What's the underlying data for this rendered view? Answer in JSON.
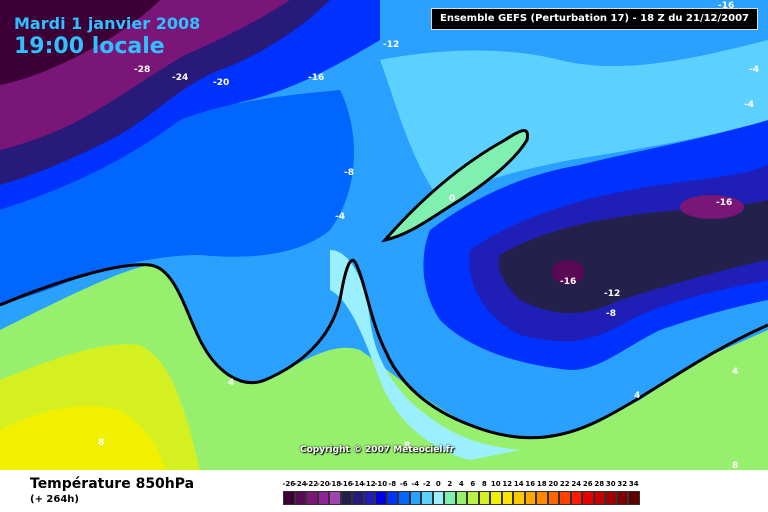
{
  "header": {
    "date": "Mardi 1 janvier 2008",
    "time": "19:00 locale"
  },
  "run_info": "Ensemble GEFS (Perturbation 17) - 18 Z du 21/12/2007",
  "copyright": "Copyright © 2007 Meteociel.fr",
  "footer": {
    "title": "Température 850hPa",
    "subtitle": "(+ 264h)"
  },
  "legend": {
    "values": [
      "-26",
      "-24",
      "-22",
      "-20",
      "-18",
      "-16",
      "-14",
      "-12",
      "-10",
      "-8",
      "-6",
      "-4",
      "-2",
      "0",
      "2",
      "4",
      "6",
      "8",
      "10",
      "12",
      "14",
      "16",
      "18",
      "20",
      "22",
      "24",
      "26",
      "28",
      "30",
      "32",
      "34"
    ],
    "colors": [
      "#3d0036",
      "#5a0a55",
      "#7a1678",
      "#92229a",
      "#a042b0",
      "#23214c",
      "#281a78",
      "#1f1fb8",
      "#0000e8",
      "#0032ff",
      "#0066ff",
      "#2aa0ff",
      "#5cd0ff",
      "#9af0ff",
      "#80f0b0",
      "#96f06e",
      "#b8f046",
      "#d4f020",
      "#f0f000",
      "#ffe400",
      "#ffc800",
      "#ffa800",
      "#ff8800",
      "#ff6600",
      "#ff4000",
      "#ff1a00",
      "#e60000",
      "#c80000",
      "#a00000",
      "#800000",
      "#600000"
    ]
  },
  "map_labels": [
    "-28",
    "-24",
    "-20",
    "-16",
    "-12",
    "-8",
    "-4",
    "0",
    "4",
    "8",
    "-16",
    "-16",
    "-12",
    "-8",
    "-4",
    "-4",
    "-16",
    "4",
    "8",
    "8",
    "4"
  ],
  "colors": {
    "zero_isotherm": "#000000",
    "label_text": "#ffffff"
  }
}
